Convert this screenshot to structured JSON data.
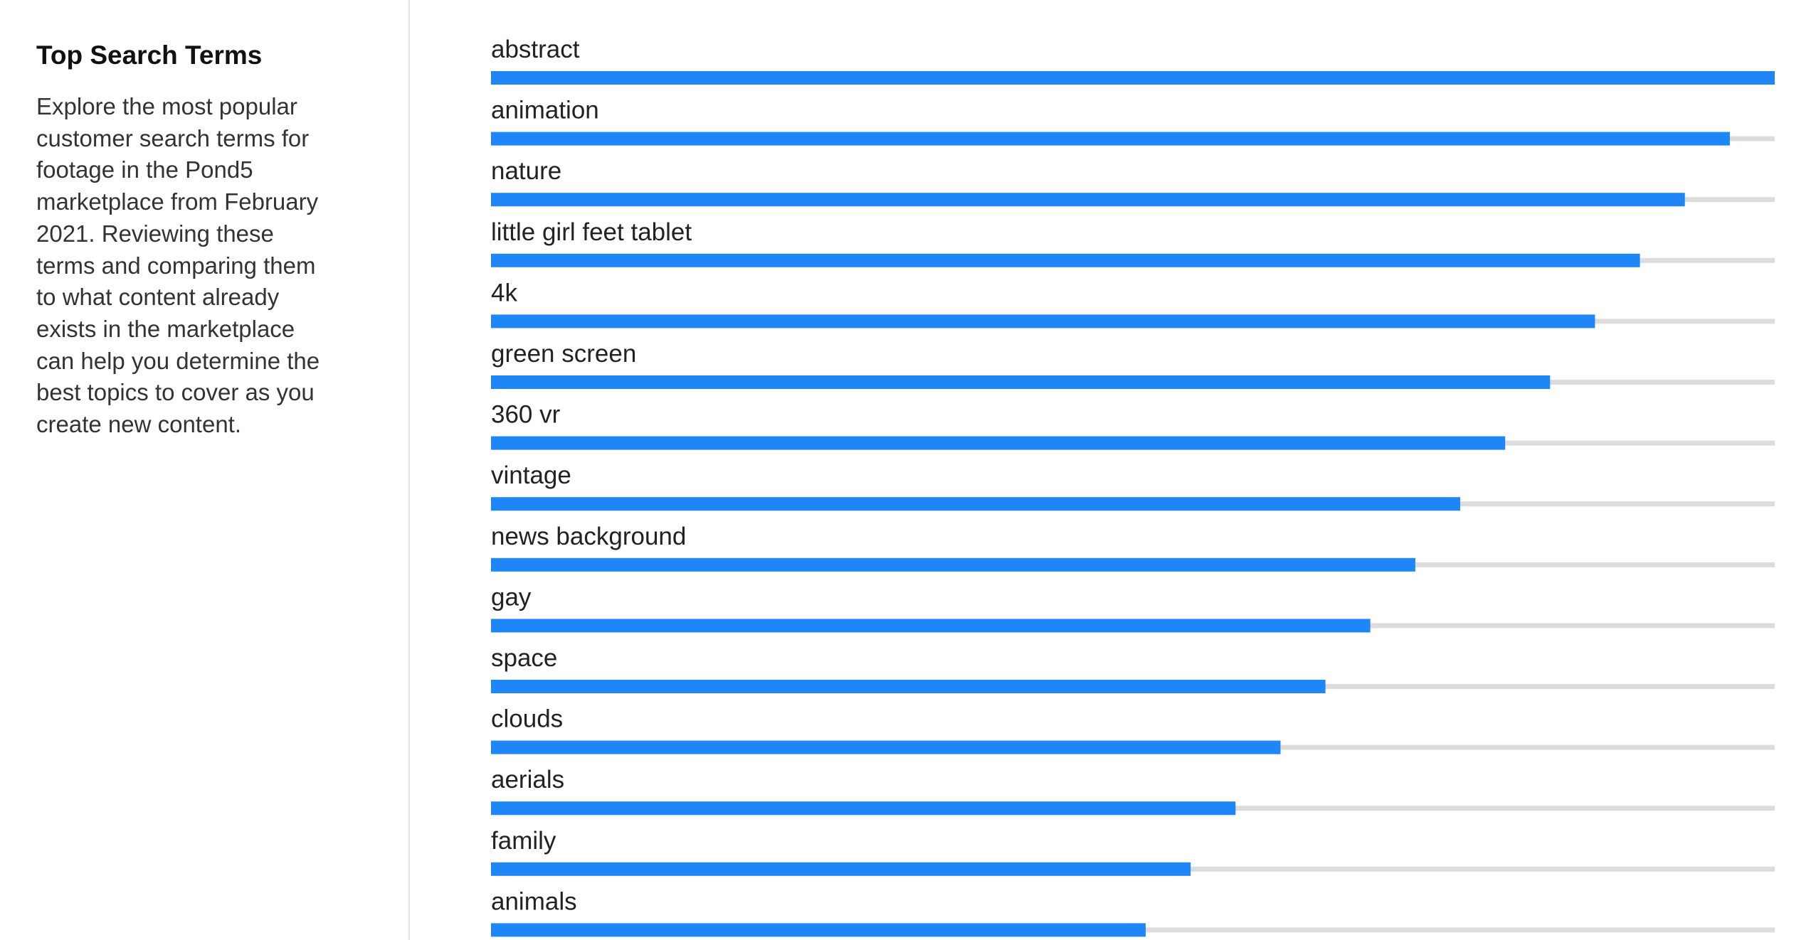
{
  "sidebar": {
    "title": "Top Search Terms",
    "description": "Explore the most popular customer search terms for footage in the Pond5 marketplace from February 2021. Reviewing these terms and comparing them to what content already exists in the marketplace can help you determine the best topics to cover as you create new content."
  },
  "colors": {
    "bar": "#1f86f7",
    "track": "#dcdcdc"
  },
  "chart_data": {
    "type": "bar",
    "orientation": "horizontal",
    "categories": [
      "abstract",
      "animation",
      "nature",
      "little girl feet tablet",
      "4k",
      "green screen",
      "360 vr",
      "vintage",
      "news background",
      "gay",
      "space",
      "clouds",
      "aerials",
      "family",
      "animals"
    ],
    "values": [
      100,
      96.5,
      93,
      89.5,
      86,
      82.5,
      79,
      75.5,
      72,
      68.5,
      65,
      61.5,
      58,
      54.5,
      51
    ],
    "xlim": [
      0,
      100
    ],
    "grid": false,
    "legend": false
  }
}
